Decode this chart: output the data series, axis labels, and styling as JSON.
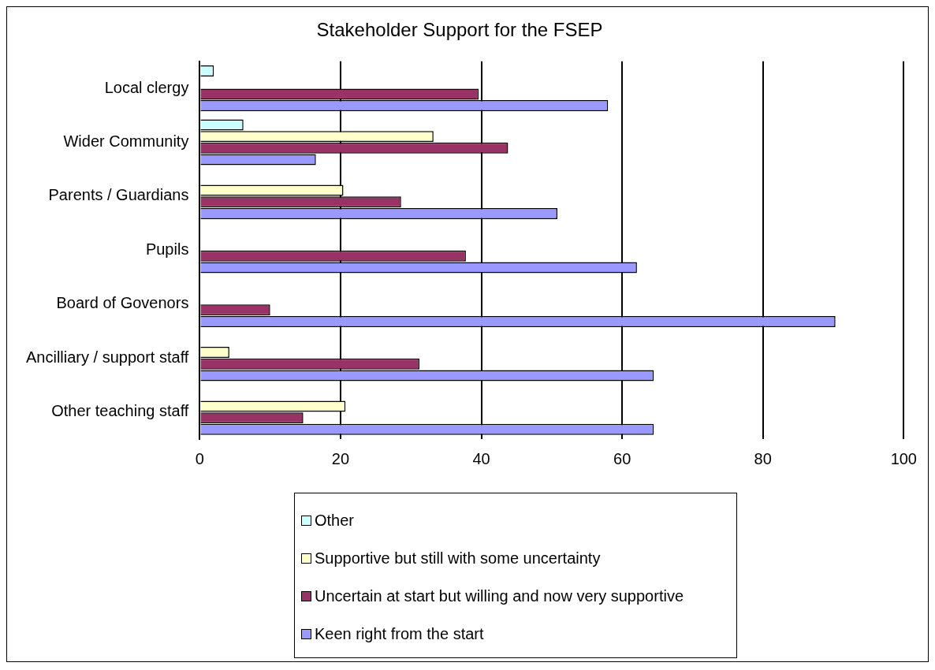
{
  "chart_data": {
    "type": "bar",
    "orientation": "horizontal",
    "title": "Stakeholder Support for the FSEP",
    "categories": [
      "Local clergy",
      "Wider Community",
      "Parents / Guardians",
      "Pupils",
      "Board of Govenors",
      "Ancilliary / support staff",
      "Other teaching staff"
    ],
    "series": [
      {
        "name": "Other",
        "color": "#ccffff",
        "values": [
          2,
          6.2,
          null,
          null,
          null,
          null,
          null
        ]
      },
      {
        "name": "Supportive but still with some uncertainty",
        "color": "#ffffcc",
        "values": [
          null,
          33.2,
          20.4,
          null,
          null,
          4.2,
          20.7
        ]
      },
      {
        "name": "Uncertain at start but willing and now very supportive",
        "color": "#993366",
        "values": [
          39.6,
          43.8,
          28.6,
          37.8,
          10,
          31.2,
          14.7
        ]
      },
      {
        "name": "Keen right from the start",
        "color": "#9999ff",
        "values": [
          58,
          16.5,
          50.8,
          62.1,
          90.3,
          64.5,
          64.5
        ]
      }
    ],
    "xlim": [
      0,
      100
    ],
    "xticks": [
      0,
      20,
      40,
      60,
      80,
      100
    ],
    "grid": "x",
    "legend": "bottom"
  }
}
